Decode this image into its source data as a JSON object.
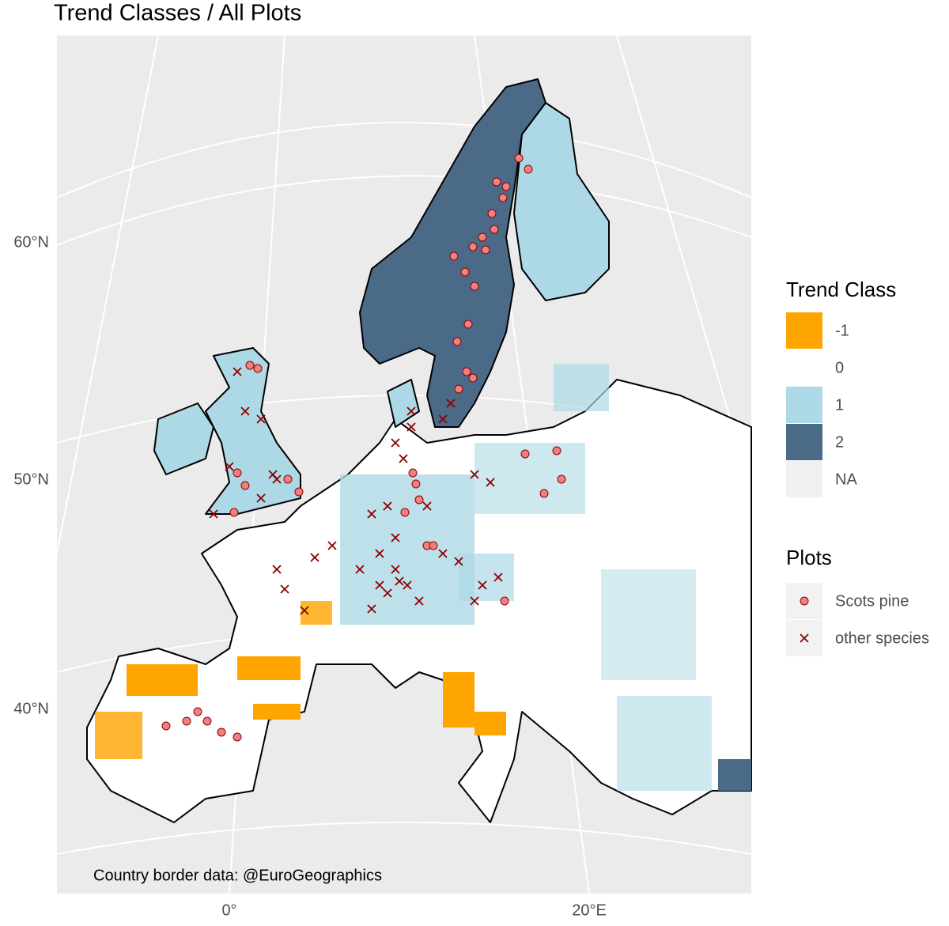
{
  "title": "Trend Classes / All Plots",
  "axes": {
    "y_labels": [
      "60°N",
      "50°N",
      "40°N"
    ],
    "x_labels": [
      "0°",
      "20°E"
    ]
  },
  "caption": "Country border data: @EuroGeographics",
  "legend": {
    "trend_title": "Trend Class",
    "trend_items": [
      {
        "label": "-1",
        "color": "#FFA500"
      },
      {
        "label": "0",
        "color": "#FFFFFF"
      },
      {
        "label": "1",
        "color": "#ADD8E6"
      },
      {
        "label": "2",
        "color": "#4B6A88"
      },
      {
        "label": "NA",
        "color": "#F0F0F0"
      }
    ],
    "plots_title": "Plots",
    "plots_items": [
      {
        "label": "Scots pine",
        "color": "#F08080"
      },
      {
        "label": "other species",
        "color": "#8B0000"
      }
    ]
  }
}
